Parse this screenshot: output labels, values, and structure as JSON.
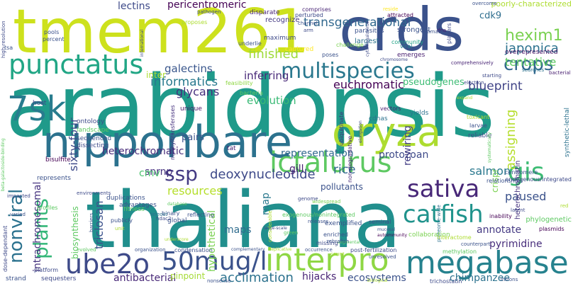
{
  "words": [
    {
      "text": "arabidopsis",
      "color": "#1f9a8a",
      "vertical": false
    },
    {
      "text": "thaliana",
      "color": "#218f8d",
      "vertical": false
    },
    {
      "text": "tmem261",
      "color": "#cde11d",
      "vertical": false
    },
    {
      "text": "crds",
      "color": "#3b528b",
      "vertical": false
    },
    {
      "text": "nipponbare",
      "color": "#2c728e",
      "vertical": false
    },
    {
      "text": "oryza",
      "color": "#addc30",
      "vertical": false
    },
    {
      "text": "interpro",
      "color": "#8fd744",
      "vertical": false
    },
    {
      "text": "megabase",
      "color": "#26828e",
      "vertical": false
    },
    {
      "text": "punctatus",
      "color": "#21a685",
      "vertical": false
    },
    {
      "text": "ictalurus",
      "color": "#5ec962",
      "vertical": false
    },
    {
      "text": "multispecies",
      "color": "#2a788e",
      "vertical": false
    },
    {
      "text": "ube2o",
      "color": "#3e4a89",
      "vertical": false
    },
    {
      "text": "50mug/l",
      "color": "#3b528b",
      "vertical": false
    },
    {
      "text": "7sk",
      "color": "#287c8e",
      "vertical": false
    },
    {
      "text": "catfish",
      "color": "#20938c",
      "vertical": false
    },
    {
      "text": "sativa",
      "color": "#482878",
      "vertical": false
    },
    {
      "text": "gis",
      "color": "#3dbc74",
      "vertical": false
    },
    {
      "text": "crops",
      "color": "#31688e",
      "vertical": false
    },
    {
      "text": "plants",
      "color": "#35b779",
      "vertical": true
    },
    {
      "text": "nonviral",
      "color": "#2c728e",
      "vertical": true
    },
    {
      "text": "ssp",
      "color": "#443a83",
      "vertical": false
    },
    {
      "text": "deoxynucleotide",
      "color": "#3e4a89",
      "vertical": false
    },
    {
      "text": "acclimation",
      "color": "#2c728e",
      "vertical": false
    },
    {
      "text": "hexim1",
      "color": "#7ad151",
      "vertical": false
    },
    {
      "text": "japonica",
      "color": "#2c728e",
      "vertical": false
    },
    {
      "text": "tentative",
      "color": "#5ec962",
      "vertical": false
    },
    {
      "text": "transgenerational",
      "color": "#31688e",
      "vertical": false
    },
    {
      "text": "informatics",
      "color": "#297a8e",
      "vertical": false
    },
    {
      "text": "galectins",
      "color": "#39568c",
      "vertical": false
    },
    {
      "text": "glycans",
      "color": "#46307e",
      "vertical": false
    },
    {
      "text": "finished",
      "color": "#9fda3a",
      "vertical": false
    },
    {
      "text": "euchromatic",
      "color": "#440154",
      "vertical": false
    },
    {
      "text": "blueprint",
      "color": "#414487",
      "vertical": false
    },
    {
      "text": "evolution",
      "color": "#3aba76",
      "vertical": false
    },
    {
      "text": "inferring",
      "color": "#482878",
      "vertical": false
    },
    {
      "text": "heterochromatic",
      "color": "#472c7a",
      "vertical": false
    },
    {
      "text": "sixty-four",
      "color": "#3e4a89",
      "vertical": true
    },
    {
      "text": "intrachromosomal",
      "color": "#46337f",
      "vertical": true
    },
    {
      "text": "biosynthesis",
      "color": "#5ec962",
      "vertical": true
    },
    {
      "text": "triclosan",
      "color": "#3b528b",
      "vertical": true
    },
    {
      "text": "snrnp",
      "color": "#46327e",
      "vertical": false
    },
    {
      "text": "resources",
      "color": "#b5de2b",
      "vertical": false
    },
    {
      "text": "rice",
      "color": "#31688e",
      "vertical": false
    },
    {
      "text": "protozoan",
      "color": "#3e4a89",
      "vertical": false
    },
    {
      "text": "salmon",
      "color": "#2a788e",
      "vertical": false
    },
    {
      "text": "rewiring",
      "color": "#433e85",
      "vertical": true
    },
    {
      "text": "assigning",
      "color": "#b5de2b",
      "vertical": true
    },
    {
      "text": "paused",
      "color": "#3b528b",
      "vertical": false
    },
    {
      "text": "annotate",
      "color": "#443983",
      "vertical": false
    },
    {
      "text": "pyrimidine",
      "color": "#472d7b",
      "vertical": false
    },
    {
      "text": "hypothetical",
      "color": "#7ad151",
      "vertical": true
    },
    {
      "text": "rnap",
      "color": "#2a788e",
      "vertical": true
    },
    {
      "text": "maps",
      "color": "#2f6c8e",
      "vertical": false
    },
    {
      "text": "pollutants",
      "color": "#3b528b",
      "vertical": false
    },
    {
      "text": "hijacks",
      "color": "#482475",
      "vertical": false
    },
    {
      "text": "ecosystems",
      "color": "#3b528b",
      "vertical": false
    },
    {
      "text": "chimpanzee",
      "color": "#2c728e",
      "vertical": false
    },
    {
      "text": "antibacterial",
      "color": "#482878",
      "vertical": false
    },
    {
      "text": "pinpoint",
      "color": "#a5db36",
      "vertical": false
    },
    {
      "text": "representation",
      "color": "#31688e",
      "vertical": false
    },
    {
      "text": "pericentromeric",
      "color": "#440154",
      "vertical": false
    },
    {
      "text": "lectins",
      "color": "#3e4a89",
      "vertical": false
    },
    {
      "text": "cdk9",
      "color": "#2e6e8e",
      "vertical": false
    },
    {
      "text": "cmv",
      "color": "#4ac16d",
      "vertical": false
    },
    {
      "text": "gill",
      "color": "#481f70",
      "vertical": false
    },
    {
      "text": "pseudogenes",
      "color": "#3dbc74",
      "vertical": false
    },
    {
      "text": "inter",
      "color": "#addc30",
      "vertical": false
    },
    {
      "text": "crispr",
      "color": "#7ad151",
      "vertical": true
    },
    {
      "text": "heterochromatin",
      "color": "#46337f",
      "vertical": true
    },
    {
      "text": "poorly-characterized",
      "color": "#addc30",
      "vertical": false
    },
    {
      "text": "overrepresented",
      "color": "#471063",
      "vertical": false
    },
    {
      "text": "recognize",
      "color": "#443983",
      "vertical": false
    },
    {
      "text": "disparate",
      "color": "#482475",
      "vertical": false
    },
    {
      "text": "strongest",
      "color": "#3b528b",
      "vertical": false
    },
    {
      "text": "largest",
      "color": "#2c728e",
      "vertical": false
    },
    {
      "text": "parasites",
      "color": "#3b528b",
      "vertical": false
    },
    {
      "text": "emerges",
      "color": "#481f70",
      "vertical": false
    },
    {
      "text": "captured",
      "color": "#fde725",
      "vertical": false
    },
    {
      "text": "maximum",
      "color": "#3e4a89",
      "vertical": false
    },
    {
      "text": "community",
      "color": "#20a386",
      "vertical": false
    },
    {
      "text": "viral",
      "color": "#26828e",
      "vertical": false
    },
    {
      "text": "unique",
      "color": "#481668",
      "vertical": false
    },
    {
      "text": "pairs",
      "color": "#3b528b",
      "vertical": false
    },
    {
      "text": "tat",
      "color": "#482173",
      "vertical": false
    },
    {
      "text": "bisulfite",
      "color": "#440154",
      "vertical": false
    },
    {
      "text": "ontology",
      "color": "#3e4a89",
      "vertical": false
    },
    {
      "text": "landscape",
      "color": "#5ec962",
      "vertical": false
    },
    {
      "text": "sequenced",
      "color": "#3b528b",
      "vertical": false
    },
    {
      "text": "dissecting",
      "color": "#3e4a89",
      "vertical": false
    },
    {
      "text": "host",
      "color": "#3e4a89",
      "vertical": false
    },
    {
      "text": "bacteria",
      "color": "#5ec962",
      "vertical": false
    },
    {
      "text": "feasibility",
      "color": "#8fd744",
      "vertical": false
    },
    {
      "text": "methyltransferases",
      "color": "#46337f",
      "vertical": true
    },
    {
      "text": "ubiquitinate",
      "color": "#46307e",
      "vertical": true
    },
    {
      "text": "non-degradative",
      "color": "#472c7a",
      "vertical": true
    },
    {
      "text": "cdnas",
      "color": "#2c728e",
      "vertical": false
    },
    {
      "text": "vectors",
      "color": "#481f70",
      "vertical": false
    },
    {
      "text": "yields",
      "color": "#2c728e",
      "vertical": false
    },
    {
      "text": "toxicant",
      "color": "#addc30",
      "vertical": false
    },
    {
      "text": "larvae",
      "color": "#3b528b",
      "vertical": false
    },
    {
      "text": "electron",
      "color": "#3e4a89",
      "vertical": false
    },
    {
      "text": "starting",
      "color": "#3e4a89",
      "vertical": false
    },
    {
      "text": "reliable",
      "color": "#3e4a89",
      "vertical": false
    },
    {
      "text": "searches",
      "color": "#2c728e",
      "vertical": false
    },
    {
      "text": "bacterial",
      "color": "#481f70",
      "vertical": false
    },
    {
      "text": "comprehensively",
      "color": "#482475",
      "vertical": false
    },
    {
      "text": "chromosome",
      "color": "#3e4a89",
      "vertical": false
    },
    {
      "text": "overcome",
      "color": "#3b528b",
      "vertical": false
    },
    {
      "text": "players",
      "color": "#3e4a89",
      "vertical": true
    },
    {
      "text": "dna",
      "color": "#481f70",
      "vertical": false
    },
    {
      "text": "estimate",
      "color": "#3b528b",
      "vertical": false
    },
    {
      "text": "challenge",
      "color": "#7ad151",
      "vertical": false
    },
    {
      "text": "attracted",
      "color": "#440154",
      "vertical": false
    },
    {
      "text": "reside",
      "color": "#fde725",
      "vertical": false
    },
    {
      "text": "comprises",
      "color": "#482475",
      "vertical": false
    },
    {
      "text": "perturbed",
      "color": "#3e4a89",
      "vertical": false
    },
    {
      "text": "channel",
      "color": "#3b528b",
      "vertical": false
    },
    {
      "text": "arm",
      "color": "#3e4a89",
      "vertical": false
    },
    {
      "text": "pathogen",
      "color": "#3e4a89",
      "vertical": false
    },
    {
      "text": "proposes",
      "color": "#addc30",
      "vertical": false
    },
    {
      "text": "poses",
      "color": "#3b528b",
      "vertical": false
    },
    {
      "text": "pools",
      "color": "#3b528b",
      "vertical": false
    },
    {
      "text": "percent",
      "color": "#3b528b",
      "vertical": false
    },
    {
      "text": "tsa",
      "color": "#3b528b",
      "vertical": false
    },
    {
      "text": "high-resolution",
      "color": "#3e4a89",
      "vertical": true
    },
    {
      "text": "underlie",
      "color": "#3b528b",
      "vertical": false
    },
    {
      "text": "international",
      "color": "#3e4a89",
      "vertical": true
    },
    {
      "text": "cytomegalovirus",
      "color": "#3e4a89",
      "vertical": true
    },
    {
      "text": "expand",
      "color": "#addc30",
      "vertical": false
    },
    {
      "text": "elongation",
      "color": "#3e4a89",
      "vertical": true
    },
    {
      "text": "systematically",
      "color": "#5ec962",
      "vertical": true
    },
    {
      "text": "synthetic-lethal",
      "color": "#2c728e",
      "vertical": true
    },
    {
      "text": "phylogenetic",
      "color": "#5ec962",
      "vertical": false
    },
    {
      "text": "plasmids",
      "color": "#440154",
      "vertical": false
    },
    {
      "text": "red",
      "color": "#addc30",
      "vertical": false
    },
    {
      "text": "centromere",
      "color": "#3b528b",
      "vertical": false
    },
    {
      "text": "endogenous/integrated",
      "color": "#3e4a89",
      "vertical": false
    },
    {
      "text": "relationships",
      "color": "#3b528b",
      "vertical": false
    },
    {
      "text": "latent",
      "color": "#3e4a89",
      "vertical": false
    },
    {
      "text": "inability",
      "color": "#440154",
      "vertical": false
    },
    {
      "text": "proteome-wide",
      "color": "#2c728e",
      "vertical": true
    },
    {
      "text": "collaboration",
      "color": "#7ad151",
      "vertical": false
    },
    {
      "text": "seminal",
      "color": "#3e4a89",
      "vertical": false
    },
    {
      "text": "mucosal",
      "color": "#3b528b",
      "vertical": false
    },
    {
      "text": "autoimmunity",
      "color": "#440154",
      "vertical": false
    },
    {
      "text": "missing",
      "color": "#3e4a89",
      "vertical": false
    },
    {
      "text": "segmental",
      "color": "#5ec962",
      "vertical": false
    },
    {
      "text": "exogenous/nonintegrated",
      "color": "#5ec962",
      "vertical": false
    },
    {
      "text": "large-scale",
      "color": "#3e4a89",
      "vertical": false
    },
    {
      "text": "green",
      "color": "#5ec962",
      "vertical": false
    },
    {
      "text": "considerable",
      "color": "#addc30",
      "vertical": true
    },
    {
      "text": "genome",
      "color": "#3e4a89",
      "vertical": false
    },
    {
      "text": "widespread",
      "color": "#7ad151",
      "vertical": false
    },
    {
      "text": "releases",
      "color": "#3b528b",
      "vertical": false
    },
    {
      "text": "enriched",
      "color": "#3b528b",
      "vertical": false
    },
    {
      "text": "zebrafish",
      "color": "#3b528b",
      "vertical": false
    },
    {
      "text": "exemplified",
      "color": "#3b528b",
      "vertical": false
    },
    {
      "text": "unresolved",
      "color": "#3b528b",
      "vertical": false
    },
    {
      "text": "count",
      "color": "#addc30",
      "vertical": false
    },
    {
      "text": "interactome",
      "color": "#addc30",
      "vertical": false
    },
    {
      "text": "counterpart",
      "color": "#3b528b",
      "vertical": false
    },
    {
      "text": "methylation",
      "color": "#5ec962",
      "vertical": false
    },
    {
      "text": "post-fertilization",
      "color": "#3e4a89",
      "vertical": false
    },
    {
      "text": "occurrence",
      "color": "#3b528b",
      "vertical": false
    },
    {
      "text": "replicative",
      "color": "#addc30",
      "vertical": false
    },
    {
      "text": "complementary",
      "color": "#3b528b",
      "vertical": false
    },
    {
      "text": "condensation",
      "color": "#3b528b",
      "vertical": false
    },
    {
      "text": "organization",
      "color": "#3b528b",
      "vertical": false
    },
    {
      "text": "underscore",
      "color": "#addc30",
      "vertical": false
    },
    {
      "text": "evolved",
      "color": "#5ec962",
      "vertical": false
    },
    {
      "text": "unit",
      "color": "#addc30",
      "vertical": false
    },
    {
      "text": "publicly",
      "color": "#3b528b",
      "vertical": false
    },
    {
      "text": "barriers",
      "color": "#3b528b",
      "vertical": true
    },
    {
      "text": "hdac2",
      "color": "#3e4a89",
      "vertical": false
    },
    {
      "text": "binary",
      "color": "#3b528b",
      "vertical": false
    },
    {
      "text": "reflecting",
      "color": "#3b528b",
      "vertical": false
    },
    {
      "text": "global",
      "color": "#3b528b",
      "vertical": false
    },
    {
      "text": "teleost",
      "color": "#2c728e",
      "vertical": false
    },
    {
      "text": "fitness",
      "color": "#5ec962",
      "vertical": false
    },
    {
      "text": "duplications",
      "color": "#3b528b",
      "vertical": false
    },
    {
      "text": "advantages",
      "color": "#3b528b",
      "vertical": false
    },
    {
      "text": "database",
      "color": "#5ec962",
      "vertical": false
    },
    {
      "text": "environments",
      "color": "#3e4a89",
      "vertical": false
    },
    {
      "text": "represents",
      "color": "#3b528b",
      "vertical": false
    },
    {
      "text": "impacted",
      "color": "#3e4a89",
      "vertical": false
    },
    {
      "text": "profiles",
      "color": "#5ec962",
      "vertical": false
    },
    {
      "text": "varied",
      "color": "#3b528b",
      "vertical": false
    },
    {
      "text": "dose-dependant",
      "color": "#3e4a89",
      "vertical": true
    },
    {
      "text": "platform",
      "color": "#3e4a89",
      "vertical": false
    },
    {
      "text": "strand",
      "color": "#3b528b",
      "vertical": false
    },
    {
      "text": "sequesters",
      "color": "#3e4a89",
      "vertical": false
    },
    {
      "text": "nonsense",
      "color": "#3b528b",
      "vertical": false
    },
    {
      "text": "biological",
      "color": "#addc30",
      "vertical": false
    },
    {
      "text": "trichostatin",
      "color": "#3e4a89",
      "vertical": false
    },
    {
      "text": "introns",
      "color": "#3b528b",
      "vertical": false
    },
    {
      "text": "beta-galactoside-binding",
      "color": "#5ec962",
      "vertical": true
    }
  ]
}
